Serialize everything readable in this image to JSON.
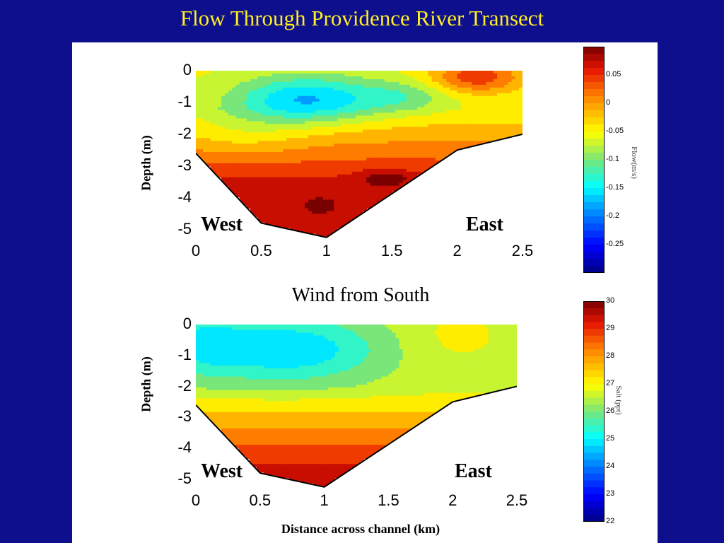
{
  "slide": {
    "title": "Flow Through Providence River Transect",
    "background": "#0d0f8c",
    "title_color": "#ffee22"
  },
  "chart_data": [
    {
      "type": "heatmap",
      "title": "",
      "ylabel": "Depth (m)",
      "xlabel": "",
      "xlim": [
        0,
        2.5
      ],
      "ylim": [
        -5.3,
        0
      ],
      "x_ticks": [
        "0",
        "0.5",
        "1",
        "1.5",
        "2",
        "2.5"
      ],
      "y_ticks": [
        "0",
        "-1",
        "-2",
        "-3",
        "-4",
        "-5"
      ],
      "annotations": {
        "left": "West",
        "right": "East"
      },
      "bottom_profile": {
        "x": [
          0,
          0.5,
          1,
          2,
          2.5
        ],
        "y": [
          -2.6,
          -4.8,
          -5.25,
          -2.5,
          -2.0
        ]
      },
      "colorbar": {
        "label": "Flow(m/s)",
        "ticks": [
          "0.05",
          "0",
          "-0.05",
          "-0.1",
          "-0.15",
          "-0.2",
          "-0.25"
        ],
        "range": [
          -0.3,
          0.1
        ]
      },
      "features": [
        {
          "kind": "core",
          "x": 0.9,
          "y": -0.8,
          "value": -0.17
        },
        {
          "kind": "core",
          "x": 1.5,
          "y": -3.4,
          "value": 0.09
        },
        {
          "kind": "core",
          "x": 0.95,
          "y": -4.3,
          "value": 0.09
        },
        {
          "kind": "core",
          "x": 2.1,
          "y": -0.2,
          "value": 0.05
        }
      ]
    },
    {
      "type": "heatmap",
      "title": "",
      "ylabel": "Depth (m)",
      "xlabel": "Distance across channel (km)",
      "xlim": [
        0,
        2.5
      ],
      "ylim": [
        -5.3,
        0
      ],
      "x_ticks": [
        "0",
        "0.5",
        "1",
        "1.5",
        "2",
        "2.5"
      ],
      "y_ticks": [
        "0",
        "-1",
        "-2",
        "-3",
        "-4",
        "-5"
      ],
      "annotations": {
        "left": "West",
        "right": "East"
      },
      "bottom_profile": {
        "x": [
          0,
          0.5,
          1,
          2,
          2.5
        ],
        "y": [
          -2.6,
          -4.8,
          -5.25,
          -2.5,
          -2.0
        ]
      },
      "colorbar": {
        "label": "Salt (ppt)",
        "ticks": [
          "30",
          "29",
          "28",
          "27",
          "26",
          "25",
          "24",
          "23",
          "22"
        ],
        "range": [
          22,
          30
        ]
      },
      "features": [
        {
          "kind": "core",
          "x": 0.7,
          "y": -1.0,
          "value": 25.0
        },
        {
          "kind": "core",
          "x": 0.95,
          "y": -5.0,
          "value": 29.5
        }
      ]
    }
  ],
  "mid_caption": "Wind from South"
}
